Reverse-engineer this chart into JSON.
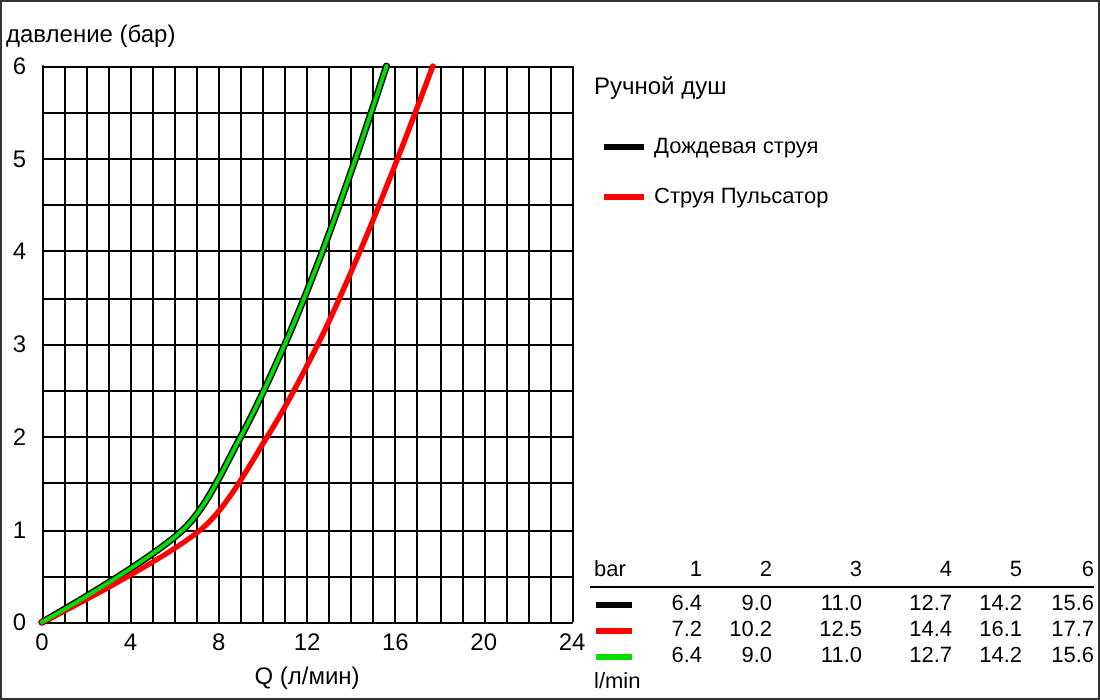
{
  "chart_data": [
    {
      "type": "line",
      "xlabel": "Q (л/мин)",
      "ylabel": "давление (бар)",
      "legend_title": "Ручной душ",
      "series": [
        {
          "name": "Дождевая струя",
          "color": "#000000",
          "x": [
            0,
            6.4,
            9.0,
            11.0,
            12.7,
            14.2,
            15.6
          ],
          "values": [
            0,
            1,
            2,
            3,
            4,
            5,
            6
          ]
        },
        {
          "name": "Струя Пульсатор",
          "color": "#ff0000",
          "x": [
            0,
            7.2,
            10.2,
            12.5,
            14.4,
            16.1,
            17.7
          ],
          "values": [
            0,
            1,
            2,
            3,
            4,
            5,
            6
          ]
        },
        {
          "color": "#00e000",
          "x": [
            0,
            6.4,
            9.0,
            11.0,
            12.7,
            14.2,
            15.6
          ],
          "values": [
            0,
            1,
            2,
            3,
            4,
            5,
            6
          ]
        }
      ],
      "xlim": [
        0,
        24
      ],
      "ylim": [
        0,
        6
      ],
      "xticks": [
        0,
        {
          "value": 1,
          "label": null
        },
        {
          "value": 2,
          "label": null
        },
        {
          "value": 3,
          "label": null
        },
        4,
        {
          "value": 5,
          "label": null
        },
        {
          "value": 6,
          "label": null
        },
        {
          "value": 7,
          "label": null
        },
        8,
        {
          "value": 9,
          "label": null
        },
        {
          "value": 10,
          "label": null
        },
        {
          "value": 11,
          "label": null
        },
        12,
        {
          "value": 13,
          "label": null
        },
        {
          "value": 14,
          "label": null
        },
        {
          "value": 15,
          "label": null
        },
        16,
        {
          "value": 17,
          "label": null
        },
        {
          "value": 18,
          "label": null
        },
        {
          "value": 19,
          "label": null
        },
        20,
        {
          "value": 21,
          "label": null
        },
        {
          "value": 22,
          "label": null
        },
        {
          "value": 23,
          "label": null
        },
        24
      ],
      "yticks": [
        0,
        {
          "value": 0.5,
          "label": null
        },
        1,
        {
          "value": 1.5,
          "label": null
        },
        2,
        {
          "value": 2.5,
          "label": null
        },
        3,
        {
          "value": 3.5,
          "label": null
        },
        4,
        {
          "value": 4.5,
          "label": null
        },
        5,
        {
          "value": 5.5,
          "label": null
        },
        6
      ],
      "grid": true,
      "legend": "right",
      "marker": "none",
      "line_style": "solid"
    },
    {
      "type": "other",
      "xlabel": "bar",
      "ylabel": "l/min",
      "categories": [
        "1",
        "2",
        "3",
        "4",
        "5",
        "6"
      ],
      "series": [
        {
          "color": "#000000",
          "values": [
            6.4,
            9.0,
            11.0,
            12.7,
            14.2,
            15.6
          ],
          "value_labels": [
            "6.4",
            "9.0",
            "11.0",
            "12.7",
            "14.2",
            "15.6"
          ]
        },
        {
          "color": "#ff0000",
          "values": [
            7.2,
            10.2,
            12.5,
            14.4,
            16.1,
            17.7
          ],
          "value_labels": [
            "7.2",
            "10.2",
            "12.5",
            "14.4",
            "16.1",
            "17.7"
          ]
        },
        {
          "color": "#00e000",
          "values": [
            6.4,
            9.0,
            11.0,
            12.7,
            14.2,
            15.6
          ],
          "value_labels": [
            "6.4",
            "9.0",
            "11.0",
            "12.7",
            "14.2",
            "15.6"
          ]
        }
      ]
    }
  ]
}
